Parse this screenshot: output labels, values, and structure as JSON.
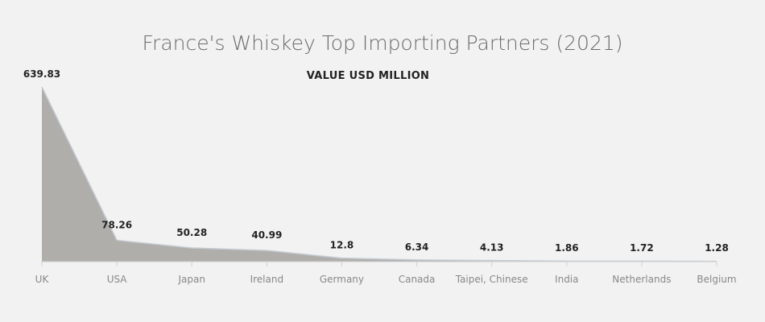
{
  "chart_data": {
    "type": "area",
    "title": "France's Whiskey Top Importing Partners (2021)",
    "subtitle": "VALUE USD MILLION",
    "categories": [
      "UK",
      "USA",
      "Japan",
      "Ireland",
      "Germany",
      "Canada",
      "Taipei, Chinese",
      "India",
      "Netherlands",
      "Belgium"
    ],
    "series": [
      {
        "values": [
          639.83,
          78.26,
          50.28,
          40.99,
          12.8,
          6.34,
          4.13,
          1.86,
          1.72,
          1.28
        ],
        "labels": [
          "639.83",
          "78.26",
          "50.28",
          "40.99",
          "12.8",
          "6.34",
          "4.13",
          "1.86",
          "1.72",
          "1.28"
        ]
      }
    ],
    "ylim": [
      0,
      639.83
    ],
    "grid": false,
    "colors": {
      "area_fill": "#b0aeab",
      "area_line": "#c5ccd3",
      "axis": "#d0d0d0",
      "background": "#f2f2f2"
    }
  }
}
